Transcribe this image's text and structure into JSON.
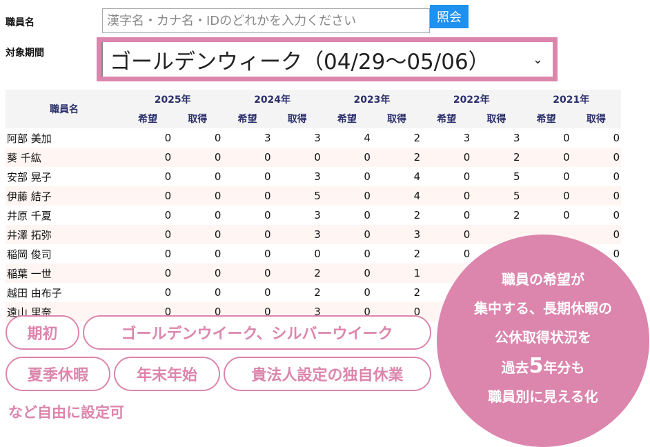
{
  "search": {
    "label": "職員名",
    "placeholder": "漢字名・カナ名・IDのどれかを入力ください",
    "button": "照会"
  },
  "period": {
    "label": "対象期間",
    "selected": "ゴールデンウィーク（04/29～05/06）",
    "chevron": "⌄"
  },
  "table": {
    "name_header": "職員名",
    "years": [
      "2025年",
      "2024年",
      "2023年",
      "2022年",
      "2021年"
    ],
    "sub": [
      "希望",
      "取得"
    ],
    "rows": [
      {
        "name": "阿部 美加",
        "v": [
          "0",
          "0",
          "3",
          "3",
          "4",
          "2",
          "3",
          "3",
          "0",
          "0"
        ]
      },
      {
        "name": "葵 千紘",
        "v": [
          "0",
          "0",
          "0",
          "0",
          "0",
          "2",
          "0",
          "2",
          "0",
          "0"
        ]
      },
      {
        "name": "安部 晃子",
        "v": [
          "0",
          "0",
          "0",
          "3",
          "0",
          "4",
          "0",
          "5",
          "0",
          "0"
        ]
      },
      {
        "name": "伊藤 結子",
        "v": [
          "0",
          "0",
          "0",
          "5",
          "0",
          "4",
          "0",
          "5",
          "0",
          "0"
        ]
      },
      {
        "name": "井原 千夏",
        "v": [
          "0",
          "0",
          "0",
          "3",
          "0",
          "2",
          "0",
          "2",
          "0",
          "0"
        ]
      },
      {
        "name": "井澤 拓弥",
        "v": [
          "0",
          "0",
          "0",
          "3",
          "0",
          "3",
          "0",
          "",
          "",
          "0"
        ]
      },
      {
        "name": "稲岡 俊司",
        "v": [
          "0",
          "0",
          "0",
          "0",
          "0",
          "2",
          "0",
          "",
          "",
          "0"
        ]
      },
      {
        "name": "稲葉 一世",
        "v": [
          "0",
          "0",
          "0",
          "2",
          "0",
          "1",
          "",
          "",
          "",
          ""
        ]
      },
      {
        "name": "越田 由布子",
        "v": [
          "0",
          "0",
          "0",
          "2",
          "0",
          "2",
          "",
          "",
          "",
          ""
        ]
      },
      {
        "name": "遠山 里奈",
        "v": [
          "0",
          "0",
          "0",
          "3",
          "0",
          "0",
          "",
          "",
          "",
          ""
        ]
      }
    ]
  },
  "pills": [
    "期初",
    "ゴールデンウイーク、シルバーウイーク",
    "夏季休暇",
    "年末年始",
    "貴法人設定の独自休業"
  ],
  "note": "など自由に設定可",
  "callout": {
    "l1": "職員の希望が",
    "l2": "集中する、長期休暇の",
    "l3": "公休取得状況を",
    "l4a": "過去",
    "l4b": "5",
    "l4c": "年分も",
    "l5": "職員別に見える化"
  },
  "colors": {
    "accent": "#dc85ad",
    "button": "#1e90ef",
    "header_text": "#2b2f6b"
  }
}
